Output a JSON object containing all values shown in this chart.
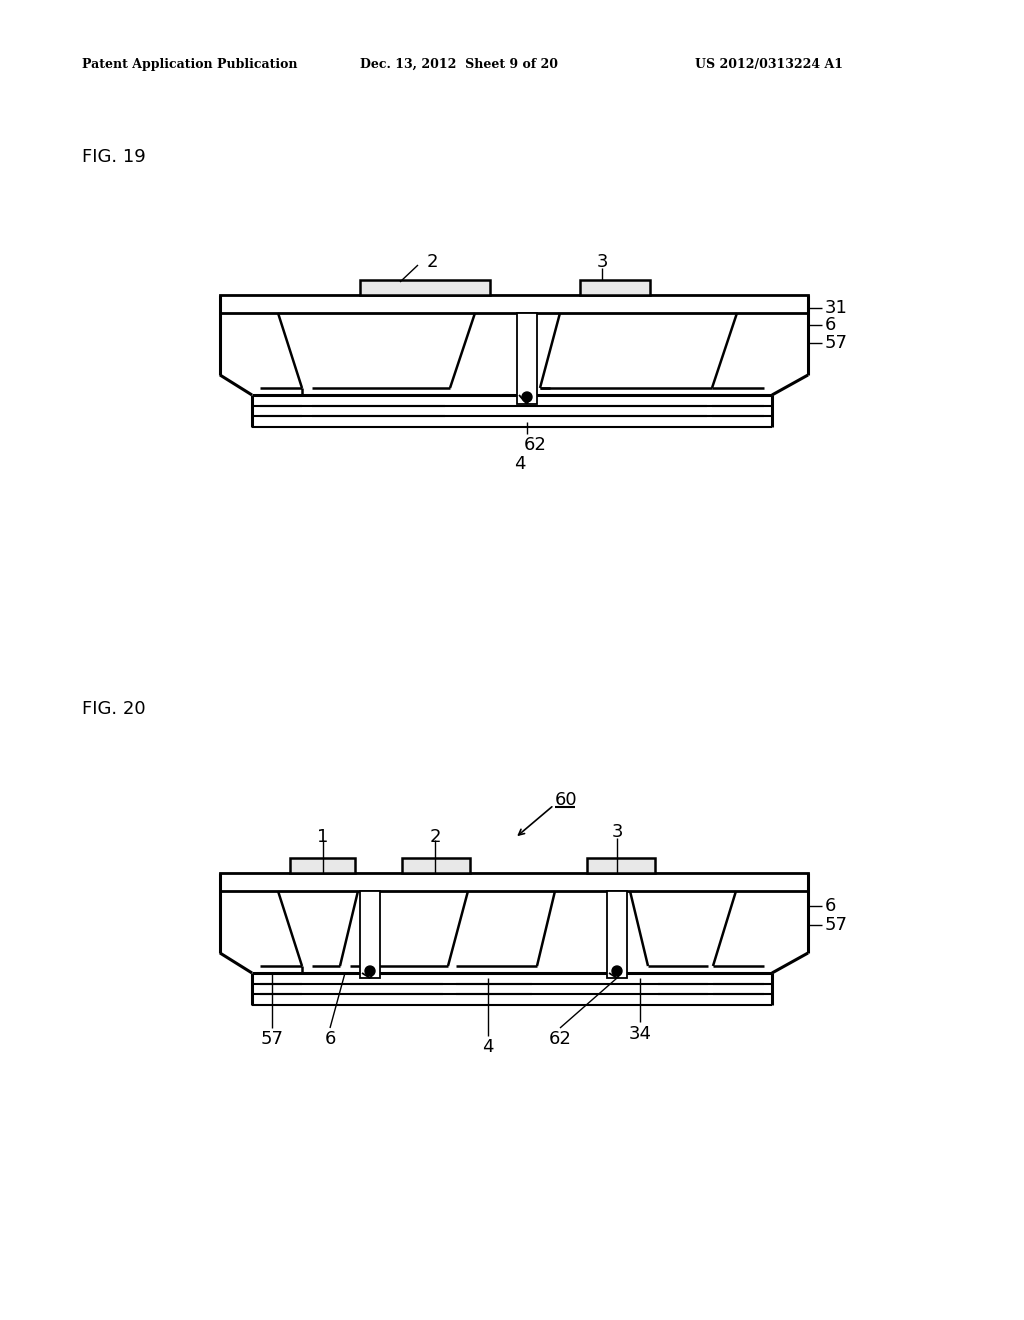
{
  "bg_color": "#ffffff",
  "line_color": "#000000",
  "fig_width": 10.24,
  "fig_height": 13.2,
  "header_text": "Patent Application Publication",
  "header_date": "Dec. 13, 2012  Sheet 9 of 20",
  "header_patent": "US 2012/0313224 A1",
  "fig19_label": "FIG. 19",
  "fig20_label": "FIG. 20"
}
